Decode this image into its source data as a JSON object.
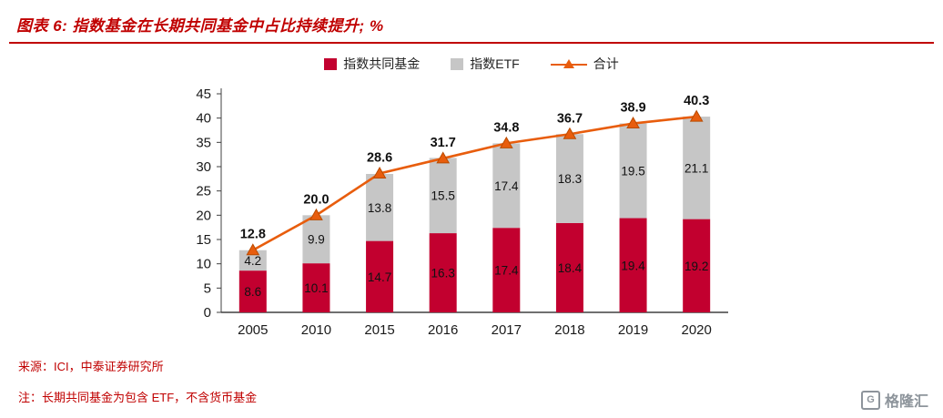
{
  "header": {
    "title": "图表 6:  指数基金在长期共同基金中占比持续提升; %"
  },
  "legend": [
    {
      "label": "指数共同基金",
      "color": "#c2002f",
      "type": "square"
    },
    {
      "label": "指数ETF",
      "color": "#c6c6c6",
      "type": "square"
    },
    {
      "label": "合计",
      "color": "#e85d0d",
      "type": "line-triangle"
    }
  ],
  "chart_data": {
    "type": "bar",
    "stacked": true,
    "categories": [
      "2005",
      "2010",
      "2015",
      "2016",
      "2017",
      "2018",
      "2019",
      "2020"
    ],
    "series": [
      {
        "name": "指数共同基金",
        "kind": "bar",
        "color": "#c2002f",
        "values": [
          8.6,
          10.1,
          14.7,
          16.3,
          17.4,
          18.4,
          19.4,
          19.2
        ]
      },
      {
        "name": "指数ETF",
        "kind": "bar",
        "color": "#c6c6c6",
        "values": [
          4.2,
          9.9,
          13.8,
          15.5,
          17.4,
          18.3,
          19.5,
          21.1
        ]
      },
      {
        "name": "合计",
        "kind": "line",
        "color": "#e85d0d",
        "values": [
          12.8,
          20.0,
          28.6,
          31.7,
          34.8,
          36.7,
          38.9,
          40.3
        ]
      }
    ],
    "ylim": [
      0,
      45
    ],
    "yticks": [
      0,
      5,
      10,
      15,
      20,
      25,
      30,
      35,
      40,
      45
    ],
    "grid": false,
    "legend_position": "top",
    "axis_color": "#404040"
  },
  "footer": {
    "source": "来源：ICI，中泰证券研究所",
    "note": "注：长期共同基金为包含 ETF，不含货币基金"
  },
  "watermark": {
    "text": "格隆汇",
    "icon_letter": "G"
  }
}
